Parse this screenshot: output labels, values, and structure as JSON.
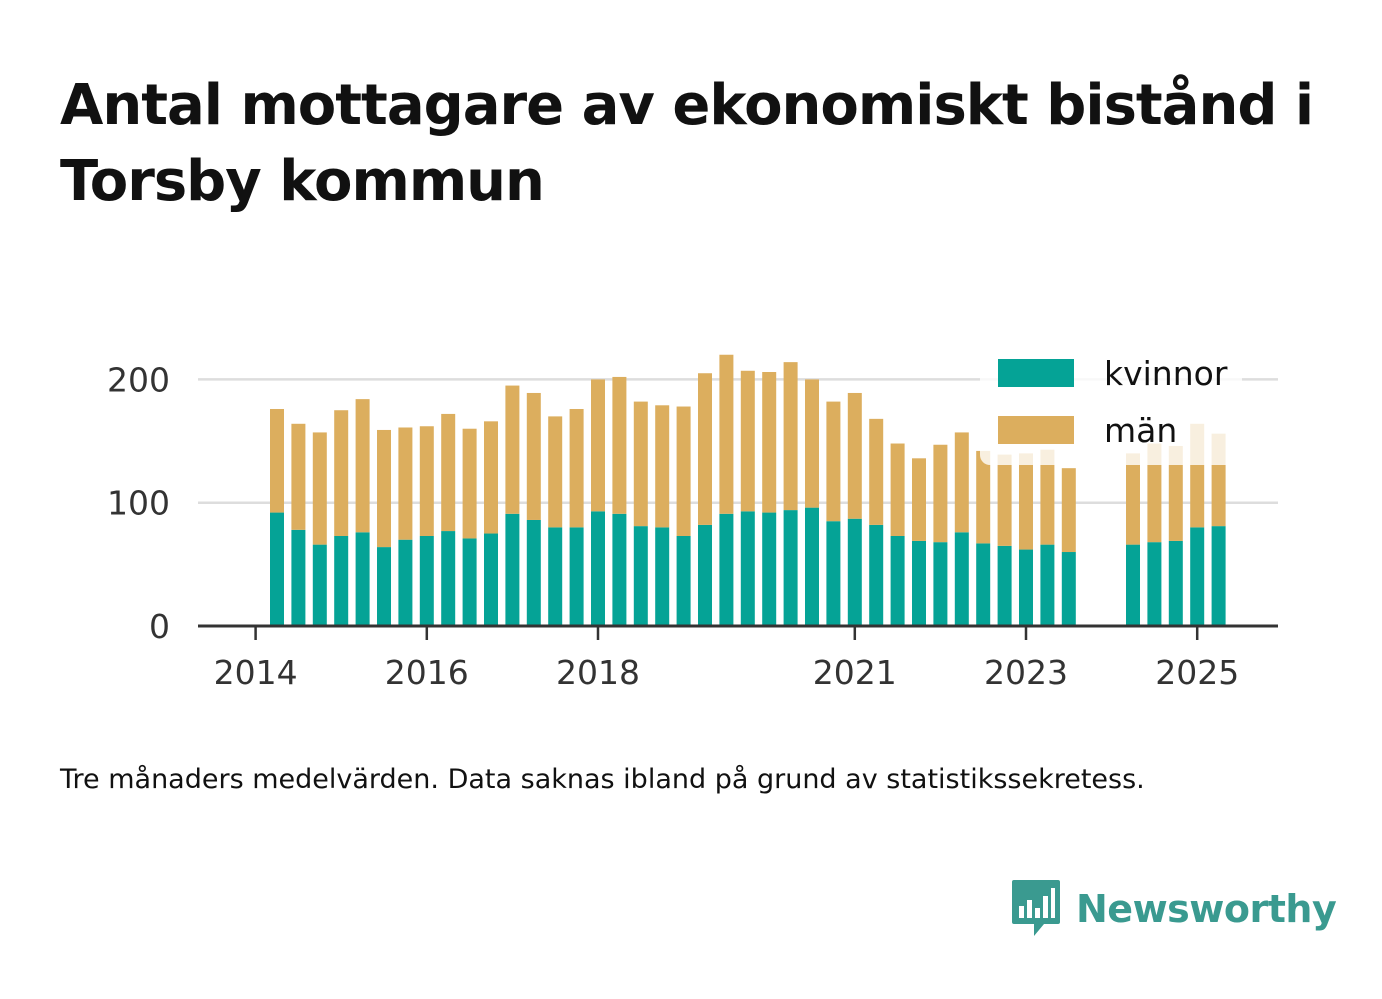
{
  "title": "Antal mottagare av ekonomiskt bistånd i Torsby kommun",
  "caption": "Tre månaders medelvärden. Data saknas ibland på grund av statistikssekretess.",
  "brand": {
    "name": "Newsworthy",
    "icon": "newsworthy-logo-icon",
    "color": "#3a9a90"
  },
  "colors": {
    "kvinnor": "#05a396",
    "man": "#dcae5e",
    "grid": "#dddddd",
    "axis": "#333333"
  },
  "chart_data": {
    "type": "bar",
    "stacked": true,
    "x_ticks": [
      "2014",
      "2016",
      "2018",
      "2021",
      "2023",
      "2025"
    ],
    "y_ticks": [
      "0",
      "100",
      "200"
    ],
    "ylim": [
      0,
      225
    ],
    "grid": true,
    "legend": {
      "placement": "top-right",
      "entries": [
        "kvinnor",
        "män"
      ]
    },
    "periods": [
      "2014-Q2",
      "2014-Q3",
      "2014-Q4",
      "2015-Q1",
      "2015-Q2",
      "2015-Q3",
      "2015-Q4",
      "2016-Q1",
      "2016-Q2",
      "2016-Q3",
      "2016-Q4",
      "2017-Q1",
      "2017-Q2",
      "2017-Q3",
      "2017-Q4",
      "2018-Q1",
      "2018-Q2",
      "2018-Q3",
      "2018-Q4",
      "2019-Q1",
      "2019-Q2",
      "2019-Q3",
      "2019-Q4",
      "2020-Q1",
      "2020-Q2",
      "2020-Q3",
      "2020-Q4",
      "2021-Q1",
      "2021-Q2",
      "2021-Q3",
      "2021-Q4",
      "2022-Q1",
      "2022-Q2",
      "2022-Q3",
      "2022-Q4",
      "2023-Q1",
      "2023-Q2",
      "2023-Q3",
      "2023-Q4",
      "2024-Q1",
      "2024-Q2",
      "2024-Q3",
      "2024-Q4",
      "2025-Q1",
      "2025-Q2"
    ],
    "series": [
      {
        "name": "kvinnor",
        "values": [
          92,
          78,
          66,
          73,
          76,
          64,
          70,
          73,
          77,
          71,
          75,
          91,
          86,
          80,
          80,
          93,
          91,
          81,
          80,
          73,
          82,
          91,
          93,
          92,
          94,
          96,
          85,
          87,
          82,
          73,
          69,
          68,
          76,
          67,
          65,
          62,
          66,
          60,
          null,
          null,
          66,
          68,
          69,
          80,
          81
        ]
      },
      {
        "name": "män",
        "values": [
          84,
          86,
          91,
          102,
          108,
          95,
          91,
          89,
          95,
          89,
          91,
          104,
          103,
          90,
          96,
          107,
          111,
          101,
          99,
          105,
          123,
          129,
          114,
          114,
          120,
          104,
          97,
          102,
          86,
          75,
          67,
          79,
          81,
          75,
          74,
          78,
          77,
          68,
          null,
          null,
          74,
          80,
          77,
          84,
          75
        ]
      }
    ]
  }
}
